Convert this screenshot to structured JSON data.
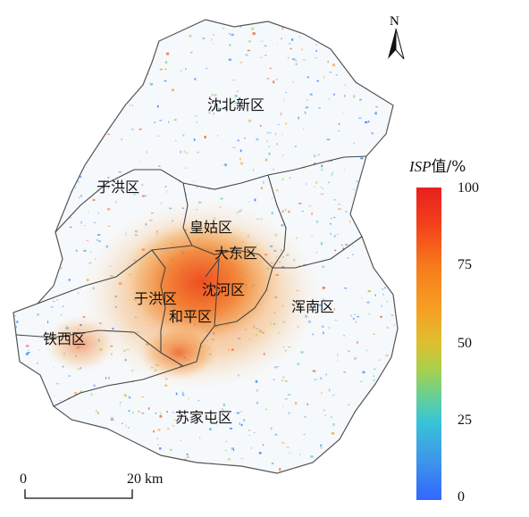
{
  "north_label": "N",
  "districts": {
    "shenbei": "沈北新区",
    "yuhong_outer": "于洪区",
    "huanggu": "皇姑区",
    "dadong": "大东区",
    "yuhong_inner": "于洪区",
    "shenhe": "沈河区",
    "heping": "和平区",
    "hunnan": "浑南区",
    "tiexi": "铁西区",
    "sujiatun": "苏家屯区"
  },
  "legend": {
    "title_italic": "ISP",
    "title_rest": "值/%",
    "ticks": [
      "100",
      "75",
      "50",
      "25",
      "0"
    ],
    "color_high": "#e81f1f",
    "color_low": "#3366ff"
  },
  "scale_bar": {
    "start_label": "0",
    "end_label": "20 km"
  }
}
